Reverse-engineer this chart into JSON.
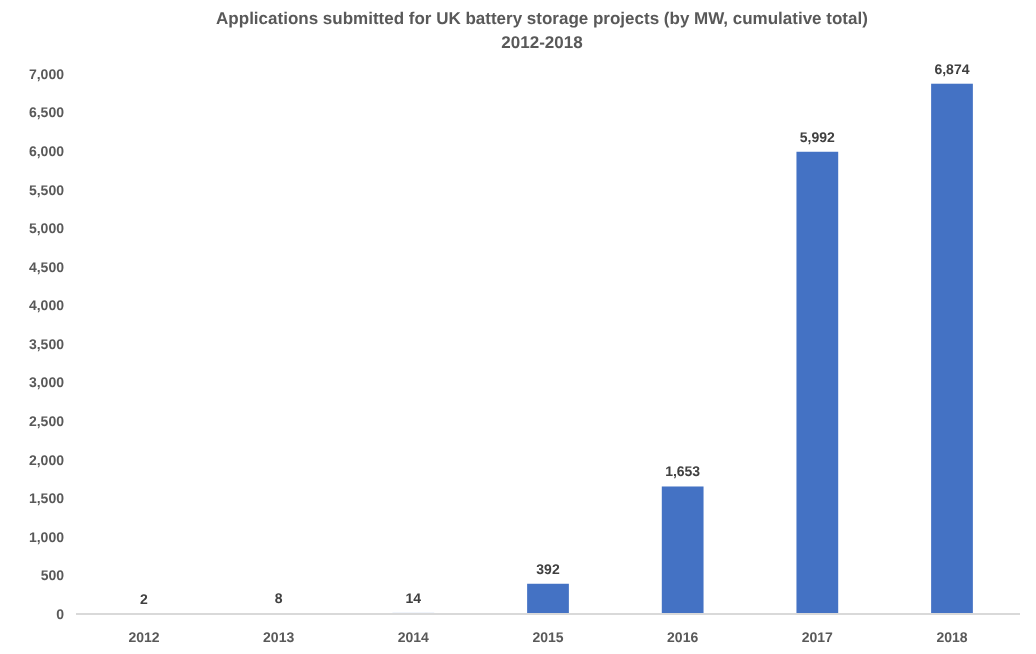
{
  "chart_data": {
    "type": "bar",
    "title": "Applications submitted for UK battery storage projects (by MW, cumulative total)",
    "subtitle": "2012-2018",
    "categories": [
      "2012",
      "2013",
      "2014",
      "2015",
      "2016",
      "2017",
      "2018"
    ],
    "values": [
      2,
      8,
      14,
      392,
      1653,
      5992,
      6874
    ],
    "value_labels": [
      "2",
      "8",
      "14",
      "392",
      "1,653",
      "5,992",
      "6,874"
    ],
    "color": "#4472c4",
    "ylim": [
      0,
      7000
    ],
    "yticks": [
      {
        "value": 0,
        "label": "0"
      },
      {
        "value": 500,
        "label": "500"
      },
      {
        "value": 1000,
        "label": "1,000"
      },
      {
        "value": 1500,
        "label": "1,500"
      },
      {
        "value": 2000,
        "label": "2,000"
      },
      {
        "value": 2500,
        "label": "2,500"
      },
      {
        "value": 3000,
        "label": "3,000"
      },
      {
        "value": 3500,
        "label": "3,500"
      },
      {
        "value": 4000,
        "label": "4,000"
      },
      {
        "value": 4500,
        "label": "4,500"
      },
      {
        "value": 5000,
        "label": "5,000"
      },
      {
        "value": 5500,
        "label": "5,500"
      },
      {
        "value": 6000,
        "label": "6,000"
      },
      {
        "value": 6500,
        "label": "6,500"
      },
      {
        "value": 7000,
        "label": "7,000"
      }
    ],
    "grid": false
  }
}
